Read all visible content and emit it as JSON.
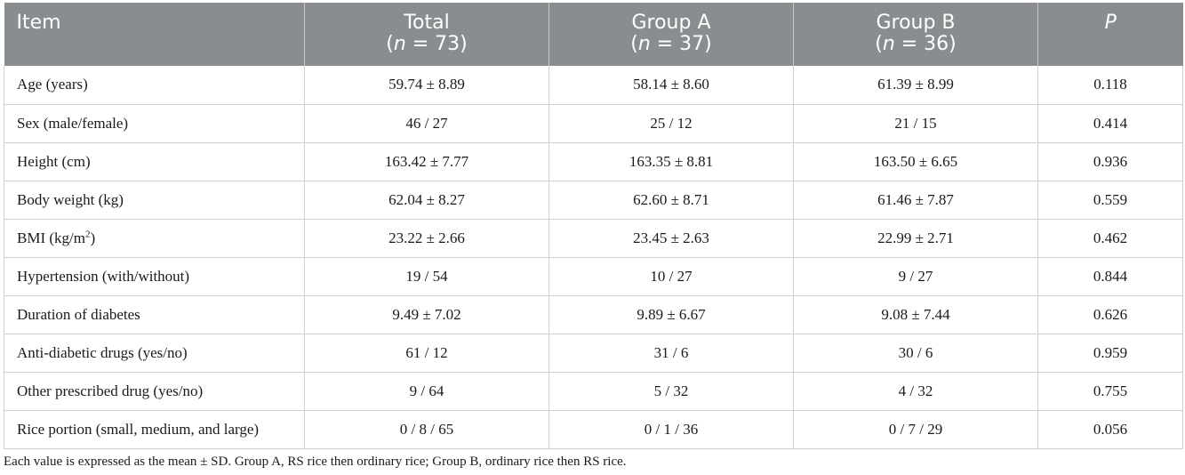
{
  "table": {
    "headers": [
      {
        "line1": "Item",
        "line2_pre": "",
        "line2_var": "",
        "line2_post": ""
      },
      {
        "line1": "Total",
        "line2_pre": "(",
        "line2_var": "n",
        "line2_post": " = 73)"
      },
      {
        "line1": "Group A",
        "line2_pre": "(",
        "line2_var": "n",
        "line2_post": " = 37)"
      },
      {
        "line1": "Group B",
        "line2_pre": "(",
        "line2_var": "n",
        "line2_post": " = 36)"
      },
      {
        "line1": "P",
        "line2_pre": "",
        "line2_var": "",
        "line2_post": ""
      }
    ],
    "rows": [
      {
        "item": "Age (years)",
        "item_sup": "",
        "item_tail": "",
        "total": "59.74 ± 8.89",
        "group_a": "58.14 ± 8.60",
        "group_b": "61.39 ± 8.99",
        "p": "0.118"
      },
      {
        "item": "Sex (male/female)",
        "item_sup": "",
        "item_tail": "",
        "total": "46 / 27",
        "group_a": "25 / 12",
        "group_b": "21 / 15",
        "p": "0.414"
      },
      {
        "item": "Height (cm)",
        "item_sup": "",
        "item_tail": "",
        "total": "163.42 ± 7.77",
        "group_a": "163.35 ± 8.81",
        "group_b": "163.50 ± 6.65",
        "p": "0.936"
      },
      {
        "item": "Body weight (kg)",
        "item_sup": "",
        "item_tail": "",
        "total": "62.04 ± 8.27",
        "group_a": "62.60 ± 8.71",
        "group_b": "61.46 ± 7.87",
        "p": "0.559"
      },
      {
        "item": "BMI (kg/m",
        "item_sup": "2",
        "item_tail": ")",
        "total": "23.22 ± 2.66",
        "group_a": "23.45 ± 2.63",
        "group_b": "22.99 ± 2.71",
        "p": "0.462"
      },
      {
        "item": "Hypertension (with/without)",
        "item_sup": "",
        "item_tail": "",
        "total": "19 / 54",
        "group_a": "10 / 27",
        "group_b": "9 / 27",
        "p": "0.844"
      },
      {
        "item": "Duration of diabetes",
        "item_sup": "",
        "item_tail": "",
        "total": "9.49 ± 7.02",
        "group_a": "9.89 ± 6.67",
        "group_b": "9.08 ± 7.44",
        "p": "0.626"
      },
      {
        "item": "Anti-diabetic drugs (yes/no)",
        "item_sup": "",
        "item_tail": "",
        "total": "61 / 12",
        "group_a": "31 / 6",
        "group_b": "30 / 6",
        "p": "0.959"
      },
      {
        "item": "Other prescribed drug (yes/no)",
        "item_sup": "",
        "item_tail": "",
        "total": "9 / 64",
        "group_a": "5 / 32",
        "group_b": "4 / 32",
        "p": "0.755"
      },
      {
        "item": "Rice portion (small, medium, and large)",
        "item_sup": "",
        "item_tail": "",
        "total": "0 / 8 / 65",
        "group_a": "0 / 1 / 36",
        "group_b": "0 / 7 / 29",
        "p": "0.056"
      }
    ]
  },
  "footnote": "Each value is expressed as the mean ± SD. Group A, RS rice then ordinary rice; Group B, ordinary rice then RS rice."
}
